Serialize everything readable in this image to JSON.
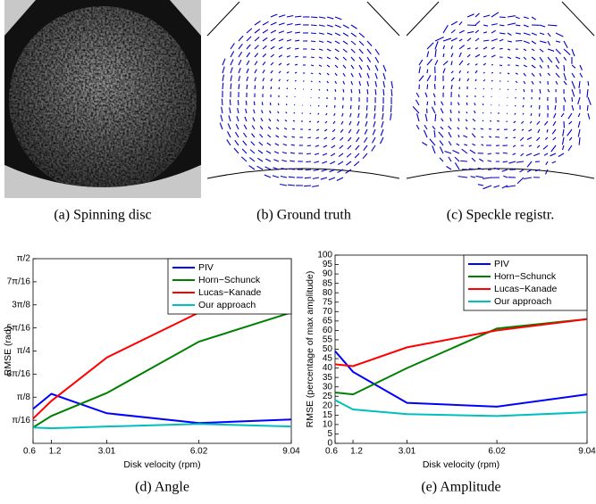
{
  "panels": [
    {
      "caption": "(a) Spinning disc"
    },
    {
      "caption": "(b) Ground truth"
    },
    {
      "caption": "(c) Speckle registr."
    }
  ],
  "chart_data": [
    {
      "type": "line",
      "caption": "(d) Angle",
      "xlabel": "Disk velocity (rpm)",
      "ylabel": "RMSE (rad)",
      "x": [
        0.6,
        1.2,
        3.01,
        6.02,
        9.04
      ],
      "xlim": [
        0.6,
        9.04
      ],
      "xticks": [
        0.6,
        1.2,
        3.01,
        6.02,
        9.04
      ],
      "ylim": [
        0,
        1.5708
      ],
      "yticks": [
        {
          "value": 0.19635,
          "label": "π/16"
        },
        {
          "value": 0.3927,
          "label": "π/8"
        },
        {
          "value": 0.58905,
          "label": "3π/16"
        },
        {
          "value": 0.7854,
          "label": "π/4"
        },
        {
          "value": 0.98175,
          "label": "5π/16"
        },
        {
          "value": 1.1781,
          "label": "3π/8"
        },
        {
          "value": 1.37445,
          "label": "7π/16"
        },
        {
          "value": 1.5708,
          "label": "π/2"
        }
      ],
      "legend": "upper right",
      "series": [
        {
          "name": "PIV",
          "color": "#0000ff",
          "values": [
            0.293,
            0.421,
            0.256,
            0.173,
            0.203
          ]
        },
        {
          "name": "Horn−Schunck",
          "color": "#008000",
          "values": [
            0.135,
            0.233,
            0.428,
            0.865,
            1.113
          ]
        },
        {
          "name": "Lucas−Kanade",
          "color": "#ff0000",
          "values": [
            0.21,
            0.361,
            0.73,
            1.113,
            1.113
          ]
        },
        {
          "name": "Our approach",
          "color": "#00bfbf",
          "values": [
            0.135,
            0.128,
            0.143,
            0.165,
            0.143
          ]
        }
      ]
    },
    {
      "type": "line",
      "caption": "(e) Amplitude",
      "xlabel": "Disk velocity (rpm)",
      "ylabel": "RMSE (percentage of max amplitude)",
      "x": [
        0.6,
        1.2,
        3.01,
        6.02,
        9.04
      ],
      "xlim": [
        0.6,
        9.04
      ],
      "xticks": [
        0.6,
        1.2,
        3.01,
        6.02,
        9.04
      ],
      "ylim": [
        0,
        100
      ],
      "yticks": [
        0,
        5,
        10,
        15,
        20,
        25,
        30,
        35,
        40,
        45,
        50,
        55,
        60,
        65,
        70,
        75,
        80,
        85,
        90,
        95,
        100
      ],
      "legend": "upper right",
      "series": [
        {
          "name": "PIV",
          "color": "#0000ff",
          "values": [
            49,
            38,
            21.5,
            19.5,
            26
          ]
        },
        {
          "name": "Horn−Schunck",
          "color": "#008000",
          "values": [
            27,
            26,
            40,
            61,
            66
          ]
        },
        {
          "name": "Lucas−Kanade",
          "color": "#ff0000",
          "values": [
            42,
            41,
            51,
            60,
            66
          ]
        },
        {
          "name": "Our approach",
          "color": "#00bfbf",
          "values": [
            23,
            18,
            15.5,
            14.5,
            16.5
          ]
        }
      ]
    }
  ]
}
